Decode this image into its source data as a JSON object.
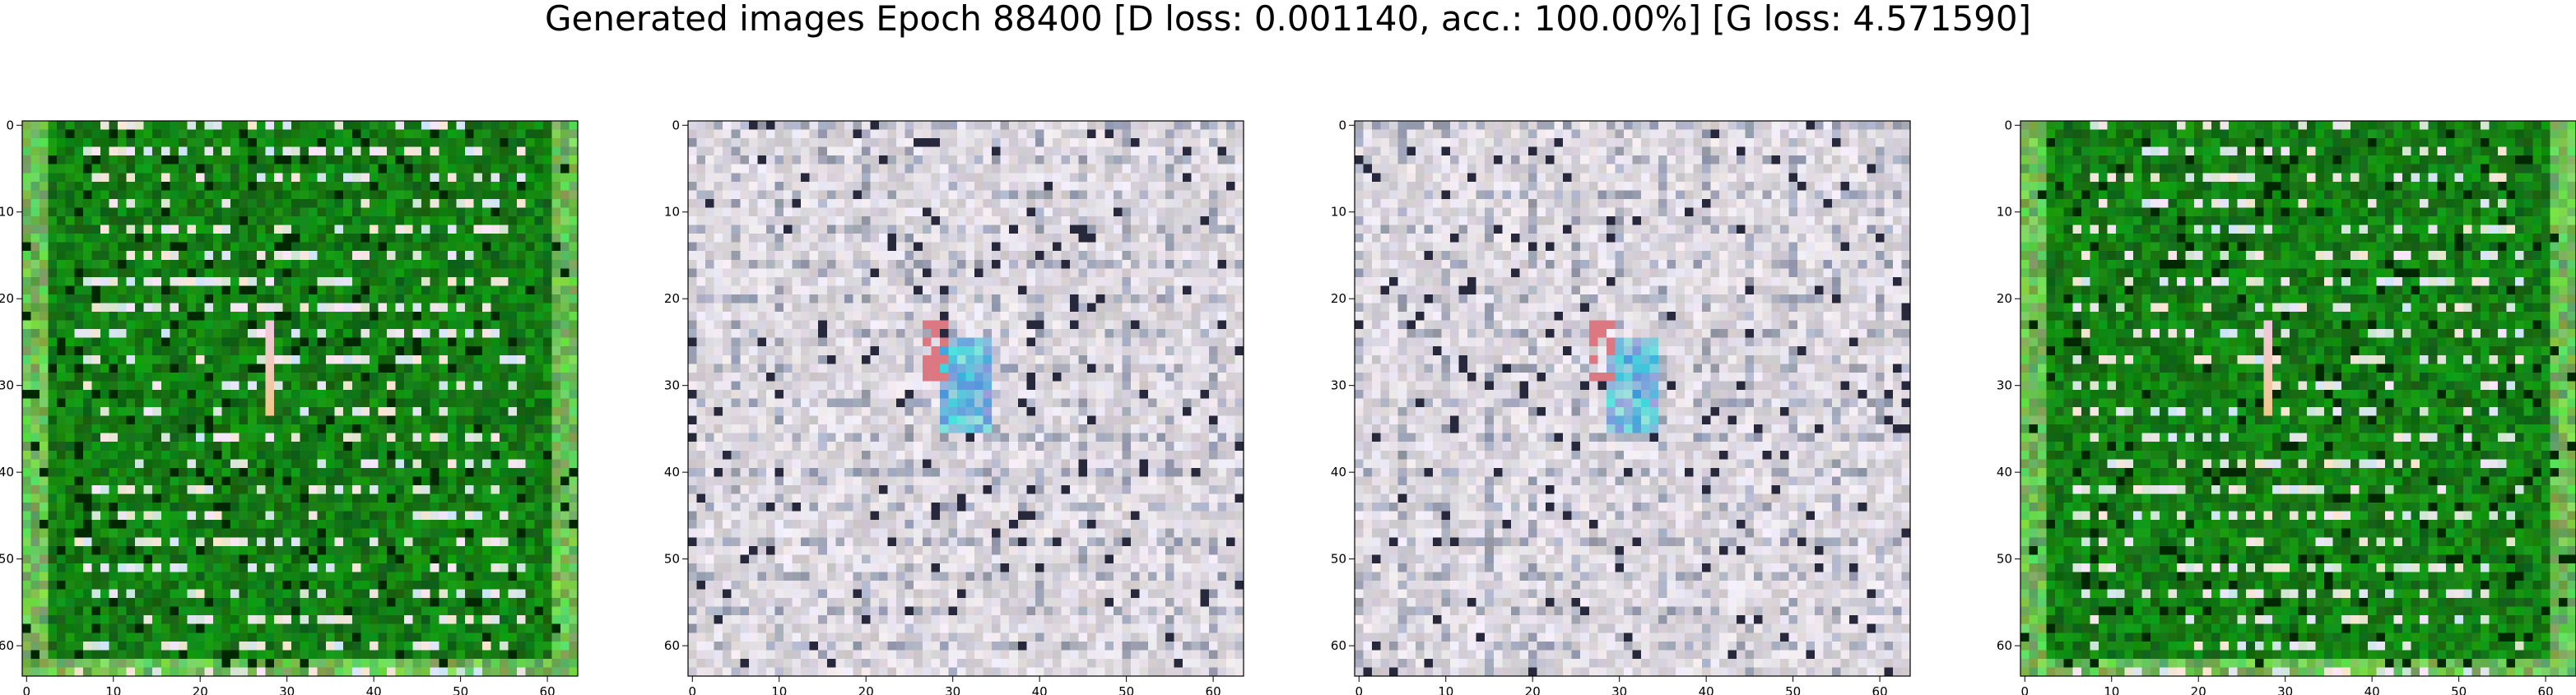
{
  "figure": {
    "title": "Generated images Epoch 88400 [D loss: 0.001140, acc.: 100.00%] [G loss: 4.571590]"
  },
  "axes_ticks": {
    "x": [
      "0",
      "10",
      "20",
      "30",
      "40",
      "50",
      "60"
    ],
    "y": [
      "0",
      "10",
      "20",
      "30",
      "40",
      "50",
      "60"
    ]
  },
  "image_grid_size": 64,
  "panels": [
    {
      "name": "generated-image-1",
      "palette": "green"
    },
    {
      "name": "generated-image-2",
      "palette": "gray"
    },
    {
      "name": "generated-image-3",
      "palette": "gray"
    },
    {
      "name": "generated-image-4",
      "palette": "green"
    }
  ]
}
